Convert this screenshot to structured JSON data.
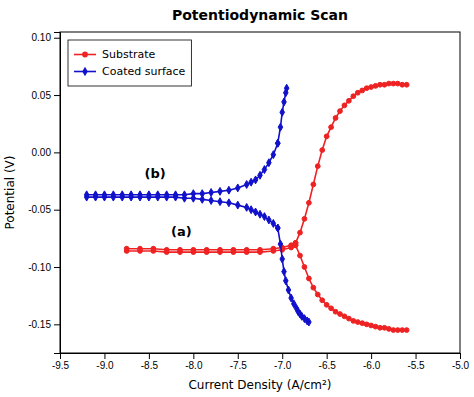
{
  "chart_data": {
    "type": "line",
    "title": "Potentiodynamic Scan",
    "xlabel": "Current Density (A/cm²)",
    "ylabel": "Potential (V)",
    "xlim": [
      -9.5,
      -5.0
    ],
    "ylim": [
      -0.175,
      0.105
    ],
    "xticks": [
      -9.5,
      {
        "value": -9.0,
        "label": "-9.0"
      },
      -8.5,
      {
        "value": -8.0,
        "label": "-8.0"
      },
      -7.5,
      {
        "value": -7.0,
        "label": "-7.0"
      },
      -6.5,
      {
        "value": -6.0,
        "label": "-6.0"
      },
      -5.5,
      {
        "value": -5.0,
        "label": "-5.0"
      }
    ],
    "yticks": [
      -0.15,
      {
        "value": -0.1,
        "label": "-0.10"
      },
      -0.05,
      {
        "value": 0.0,
        "label": "0.00"
      },
      0.05,
      {
        "value": 0.1,
        "label": "0.10"
      }
    ],
    "grid": false,
    "legend": "upper left",
    "annotations": [
      {
        "text": "(b)",
        "x": -8.55,
        "y": -0.022
      },
      {
        "text": "(a)",
        "x": -8.25,
        "y": -0.073
      }
    ],
    "series": [
      {
        "name": "Substrate",
        "color": "#EE2222",
        "marker": "circle",
        "x": [
          -8.75,
          -8.6,
          -8.45,
          -8.3,
          -8.15,
          -8.0,
          -7.85,
          -7.7,
          -7.55,
          -7.4,
          -7.25,
          -7.1,
          -7.0,
          -6.9,
          -6.85
        ],
        "values": [
          -0.084,
          -0.084,
          -0.084,
          -0.085,
          -0.085,
          -0.085,
          -0.085,
          -0.085,
          -0.085,
          -0.085,
          -0.085,
          -0.084,
          -0.083,
          -0.081,
          -0.079
        ]
      },
      {
        "name": "Substrate",
        "color": "#EE2222",
        "marker": "circle",
        "x": [
          -8.75,
          -8.6,
          -8.45,
          -8.3,
          -8.15,
          -8.0,
          -7.85,
          -7.7,
          -7.55,
          -7.4,
          -7.25,
          -7.1,
          -7.0,
          -6.9,
          -6.85
        ],
        "values": [
          -0.086,
          -0.086,
          -0.086,
          -0.087,
          -0.087,
          -0.087,
          -0.087,
          -0.087,
          -0.087,
          -0.087,
          -0.087,
          -0.086,
          -0.085,
          -0.083,
          -0.081
        ]
      },
      {
        "name": "Substrate",
        "color": "#EE2222",
        "marker": "circle",
        "x": [
          -6.85,
          -6.8,
          -6.75,
          -6.7,
          -6.65,
          -6.6,
          -6.55,
          -6.5,
          -6.45,
          -6.4,
          -6.35,
          -6.3,
          -6.25,
          -6.2,
          -6.15,
          -6.1,
          -6.05,
          -6.0,
          -5.95,
          -5.9,
          -5.85,
          -5.8,
          -5.75,
          -5.7,
          -5.65,
          -5.6
        ],
        "values": [
          -0.079,
          -0.07,
          -0.058,
          -0.044,
          -0.028,
          -0.012,
          0.002,
          0.014,
          0.022,
          0.03,
          0.036,
          0.041,
          0.045,
          0.049,
          0.052,
          0.054,
          0.056,
          0.057,
          0.058,
          0.059,
          0.059,
          0.06,
          0.06,
          0.06,
          0.059,
          0.059
        ]
      },
      {
        "name": "Substrate",
        "color": "#EE2222",
        "marker": "circle",
        "x": [
          -6.85,
          -6.8,
          -6.75,
          -6.7,
          -6.65,
          -6.6,
          -6.55,
          -6.5,
          -6.45,
          -6.4,
          -6.35,
          -6.3,
          -6.25,
          -6.2,
          -6.15,
          -6.1,
          -6.05,
          -6.0,
          -5.95,
          -5.9,
          -5.85,
          -5.8,
          -5.75,
          -5.7,
          -5.65,
          -5.6
        ],
        "values": [
          -0.081,
          -0.09,
          -0.1,
          -0.11,
          -0.118,
          -0.124,
          -0.129,
          -0.133,
          -0.136,
          -0.139,
          -0.141,
          -0.143,
          -0.145,
          -0.147,
          -0.148,
          -0.149,
          -0.15,
          -0.151,
          -0.152,
          -0.153,
          -0.153,
          -0.154,
          -0.155,
          -0.155,
          -0.155,
          -0.155
        ]
      },
      {
        "name": "Coated surface",
        "color": "#1111CC",
        "marker": "diamond",
        "x": [
          -9.2,
          -9.1,
          -9.0,
          -8.9,
          -8.8,
          -8.7,
          -8.6,
          -8.5,
          -8.4,
          -8.3,
          -8.2,
          -8.1,
          -8.0,
          -7.9,
          -7.8,
          -7.7,
          -7.6,
          -7.5,
          -7.4,
          -7.35,
          -7.3,
          -7.25,
          -7.2,
          -7.15,
          -7.1,
          -7.05
        ],
        "values": [
          -0.037,
          -0.037,
          -0.037,
          -0.037,
          -0.037,
          -0.037,
          -0.037,
          -0.037,
          -0.037,
          -0.037,
          -0.037,
          -0.037,
          -0.036,
          -0.036,
          -0.035,
          -0.034,
          -0.033,
          -0.031,
          -0.028,
          -0.026,
          -0.024,
          -0.02,
          -0.015,
          -0.009,
          -0.002,
          0.008
        ]
      },
      {
        "name": "Coated surface",
        "color": "#1111CC",
        "marker": "diamond",
        "x": [
          -9.2,
          -9.1,
          -9.0,
          -8.9,
          -8.8,
          -8.7,
          -8.6,
          -8.5,
          -8.4,
          -8.3,
          -8.2,
          -8.1,
          -8.0,
          -7.9,
          -7.8,
          -7.7,
          -7.6,
          -7.5,
          -7.4,
          -7.35,
          -7.3,
          -7.25,
          -7.2,
          -7.15,
          -7.1,
          -7.05
        ],
        "values": [
          -0.039,
          -0.039,
          -0.039,
          -0.039,
          -0.039,
          -0.039,
          -0.039,
          -0.039,
          -0.039,
          -0.039,
          -0.039,
          -0.04,
          -0.04,
          -0.041,
          -0.042,
          -0.043,
          -0.044,
          -0.046,
          -0.048,
          -0.05,
          -0.052,
          -0.054,
          -0.056,
          -0.059,
          -0.062,
          -0.066
        ]
      },
      {
        "name": "Coated surface",
        "color": "#1111CC",
        "marker": "diamond",
        "x": [
          -7.05,
          -7.02,
          -7.0,
          -6.98,
          -6.96,
          -6.95
        ],
        "values": [
          0.008,
          0.022,
          0.035,
          0.044,
          0.052,
          0.056
        ]
      },
      {
        "name": "Coated surface",
        "color": "#1111CC",
        "marker": "diamond",
        "x": [
          -7.05,
          -7.02,
          -7.0,
          -6.98,
          -6.96,
          -6.93,
          -6.9,
          -6.87,
          -6.84,
          -6.82,
          -6.8,
          -6.78,
          -6.75,
          -6.72,
          -6.7
        ],
        "values": [
          -0.066,
          -0.08,
          -0.093,
          -0.104,
          -0.112,
          -0.12,
          -0.127,
          -0.132,
          -0.136,
          -0.139,
          -0.141,
          -0.143,
          -0.145,
          -0.147,
          -0.148
        ]
      }
    ]
  }
}
